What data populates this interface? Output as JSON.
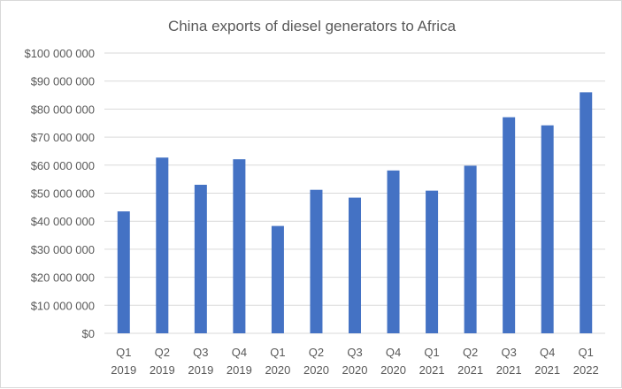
{
  "chart_data": {
    "type": "bar",
    "title": "China exports of diesel generators to Africa",
    "xlabel": "",
    "ylabel": "",
    "categories": [
      [
        "Q1",
        "2019"
      ],
      [
        "Q2",
        "2019"
      ],
      [
        "Q3",
        "2019"
      ],
      [
        "Q4",
        "2019"
      ],
      [
        "Q1",
        "2020"
      ],
      [
        "Q2",
        "2020"
      ],
      [
        "Q3",
        "2020"
      ],
      [
        "Q4",
        "2020"
      ],
      [
        "Q1",
        "2021"
      ],
      [
        "Q2",
        "2021"
      ],
      [
        "Q3",
        "2021"
      ],
      [
        "Q4",
        "2021"
      ],
      [
        "Q1",
        "2022"
      ]
    ],
    "values": [
      43500000,
      62700000,
      53000000,
      62100000,
      38300000,
      51200000,
      48400000,
      58100000,
      50900000,
      59800000,
      77100000,
      74200000,
      86000000
    ],
    "ylim": [
      0,
      100000000
    ],
    "yticks": [
      0,
      10000000,
      20000000,
      30000000,
      40000000,
      50000000,
      60000000,
      70000000,
      80000000,
      90000000,
      100000000
    ],
    "ytick_labels": [
      "$0",
      "$10 000 000",
      "$20 000 000",
      "$30 000 000",
      "$40 000 000",
      "$50 000 000",
      "$60 000 000",
      "$70 000 000",
      "$80 000 000",
      "$90 000 000",
      "$100 000 000"
    ],
    "grid": true,
    "legend": "none",
    "bar_color": "#4472c4",
    "grid_color": "#d9d9d9",
    "text_color": "#595959"
  }
}
